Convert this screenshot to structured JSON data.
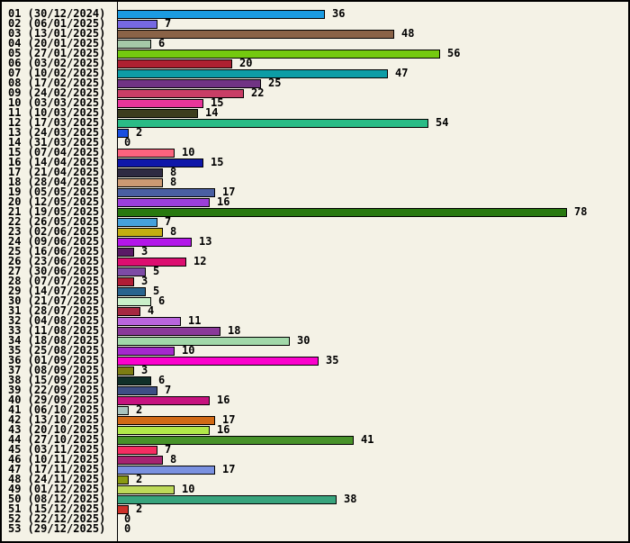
{
  "window": {
    "background_color": "#F4F2E6",
    "frame_border_color": "#000000",
    "text_color": "#000000"
  },
  "chart_data": {
    "type": "bar",
    "orientation": "horizontal",
    "title": "",
    "xlabel": "",
    "ylabel": "",
    "value_max": 78,
    "grid": false,
    "legend": false,
    "rows": [
      {
        "label": "01 (30/12/2024)",
        "value": 36,
        "color": "#1B9BE1"
      },
      {
        "label": "02 (06/01/2025)",
        "value": 7,
        "color": "#7669E3"
      },
      {
        "label": "03 (13/01/2025)",
        "value": 48,
        "color": "#8A6347"
      },
      {
        "label": "04 (20/01/2025)",
        "value": 6,
        "color": "#A5C9A8"
      },
      {
        "label": "05 (27/01/2025)",
        "value": 56,
        "color": "#74C90F"
      },
      {
        "label": "06 (03/02/2025)",
        "value": 20,
        "color": "#AF2131"
      },
      {
        "label": "07 (10/02/2025)",
        "value": 47,
        "color": "#0D9DA6"
      },
      {
        "label": "08 (17/02/2025)",
        "value": 25,
        "color": "#703384"
      },
      {
        "label": "09 (24/02/2025)",
        "value": 22,
        "color": "#C93E66"
      },
      {
        "label": "10 (03/03/2025)",
        "value": 15,
        "color": "#E8359A"
      },
      {
        "label": "11 (10/03/2025)",
        "value": 14,
        "color": "#3C3D1E"
      },
      {
        "label": "12 (17/03/2025)",
        "value": 54,
        "color": "#2ABC86"
      },
      {
        "label": "13 (24/03/2025)",
        "value": 2,
        "color": "#1A4FE0"
      },
      {
        "label": "14 (31/03/2025)",
        "value": 0,
        "color": null
      },
      {
        "label": "15 (07/04/2025)",
        "value": 10,
        "color": "#FB637E"
      },
      {
        "label": "16 (14/04/2025)",
        "value": 15,
        "color": "#0F17A9"
      },
      {
        "label": "17 (21/04/2025)",
        "value": 8,
        "color": "#2F2B42"
      },
      {
        "label": "18 (28/04/2025)",
        "value": 8,
        "color": "#CC9A73"
      },
      {
        "label": "19 (05/05/2025)",
        "value": 17,
        "color": "#4A5FA2"
      },
      {
        "label": "20 (12/05/2025)",
        "value": 16,
        "color": "#9C3FDA"
      },
      {
        "label": "21 (19/05/2025)",
        "value": 78,
        "color": "#28790F"
      },
      {
        "label": "22 (26/05/2025)",
        "value": 7,
        "color": "#45A1DA"
      },
      {
        "label": "23 (02/06/2025)",
        "value": 8,
        "color": "#C3AD12"
      },
      {
        "label": "24 (09/06/2025)",
        "value": 13,
        "color": "#B317E9"
      },
      {
        "label": "25 (16/06/2025)",
        "value": 3,
        "color": "#5A1A66"
      },
      {
        "label": "26 (23/06/2025)",
        "value": 12,
        "color": "#DC0E70"
      },
      {
        "label": "27 (30/06/2025)",
        "value": 5,
        "color": "#7D4BA5"
      },
      {
        "label": "28 (07/07/2025)",
        "value": 3,
        "color": "#B01D35"
      },
      {
        "label": "29 (14/07/2025)",
        "value": 5,
        "color": "#28648E"
      },
      {
        "label": "30 (21/07/2025)",
        "value": 6,
        "color": "#C9F0C9"
      },
      {
        "label": "31 (28/07/2025)",
        "value": 4,
        "color": "#A52941"
      },
      {
        "label": "32 (04/08/2025)",
        "value": 11,
        "color": "#B965DD"
      },
      {
        "label": "33 (11/08/2025)",
        "value": 18,
        "color": "#8A3999"
      },
      {
        "label": "34 (18/08/2025)",
        "value": 30,
        "color": "#A1D8A9"
      },
      {
        "label": "35 (25/08/2025)",
        "value": 10,
        "color": "#A529CD"
      },
      {
        "label": "36 (01/09/2025)",
        "value": 35,
        "color": "#FB02CD"
      },
      {
        "label": "37 (08/09/2025)",
        "value": 3,
        "color": "#7D7D12"
      },
      {
        "label": "38 (15/09/2025)",
        "value": 6,
        "color": "#113029"
      },
      {
        "label": "39 (22/09/2025)",
        "value": 7,
        "color": "#3E4E85"
      },
      {
        "label": "40 (29/09/2025)",
        "value": 16,
        "color": "#C6137F"
      },
      {
        "label": "41 (06/10/2025)",
        "value": 2,
        "color": "#A8C4BE"
      },
      {
        "label": "42 (13/10/2025)",
        "value": 17,
        "color": "#D16A16"
      },
      {
        "label": "43 (20/10/2025)",
        "value": 16,
        "color": "#B1E849"
      },
      {
        "label": "44 (27/10/2025)",
        "value": 41,
        "color": "#479229"
      },
      {
        "label": "45 (03/11/2025)",
        "value": 7,
        "color": "#F52D62"
      },
      {
        "label": "46 (10/11/2025)",
        "value": 8,
        "color": "#A62472"
      },
      {
        "label": "47 (17/11/2025)",
        "value": 17,
        "color": "#7A91E0"
      },
      {
        "label": "48 (24/11/2025)",
        "value": 2,
        "color": "#8A9A12"
      },
      {
        "label": "49 (01/12/2025)",
        "value": 10,
        "color": "#BDD959"
      },
      {
        "label": "50 (08/12/2025)",
        "value": 38,
        "color": "#38A47D"
      },
      {
        "label": "51 (15/12/2025)",
        "value": 2,
        "color": "#CC3129"
      },
      {
        "label": "52 (22/12/2025)",
        "value": 0,
        "color": null
      },
      {
        "label": "53 (29/12/2025)",
        "value": 0,
        "color": null
      }
    ]
  }
}
